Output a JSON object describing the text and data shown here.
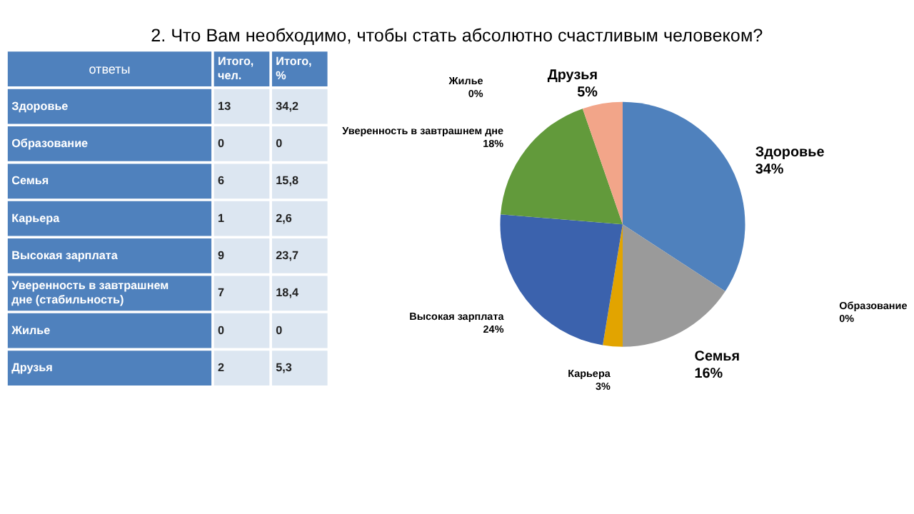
{
  "chart_data": [
    {
      "type": "other",
      "annotations": [
        "ответы",
        "Итого, чел.",
        "Итого, %",
        "Здоровье",
        "13",
        "34,2",
        "Образование",
        "0",
        "0",
        "Семья",
        "6",
        "15,8",
        "Карьера",
        "1",
        "2,6",
        "Высокая зарплата",
        "9",
        "23,7",
        "Уверенность в завтрашнем дне (стабильность)",
        "7",
        "18,4",
        "Жилье",
        "0",
        "0",
        "Друзья",
        "2",
        "5,3"
      ]
    },
    {
      "type": "pie",
      "title": "2. Что Вам необходимо, чтобы стать абсолютно счастливым человеком?",
      "categories": [
        "Здоровье",
        "Образование",
        "Семья",
        "Карьера",
        "Высокая зарплата",
        "Уверенность в завтрашнем дне",
        "Жилье",
        "Друзья"
      ],
      "values": [
        34.2,
        0,
        15.8,
        2.6,
        23.7,
        18.4,
        0,
        5.3
      ],
      "value_labels": [
        "34%",
        "0%",
        "16%",
        "3%",
        "24%",
        "18%",
        "0%",
        "5%"
      ],
      "colors": [
        "#4f81bd",
        "#c0504d",
        "#9a9a9a",
        "#e2a400",
        "#3b62ad",
        "#629a3b",
        "#7f7f7f",
        "#f2a589"
      ]
    }
  ]
}
